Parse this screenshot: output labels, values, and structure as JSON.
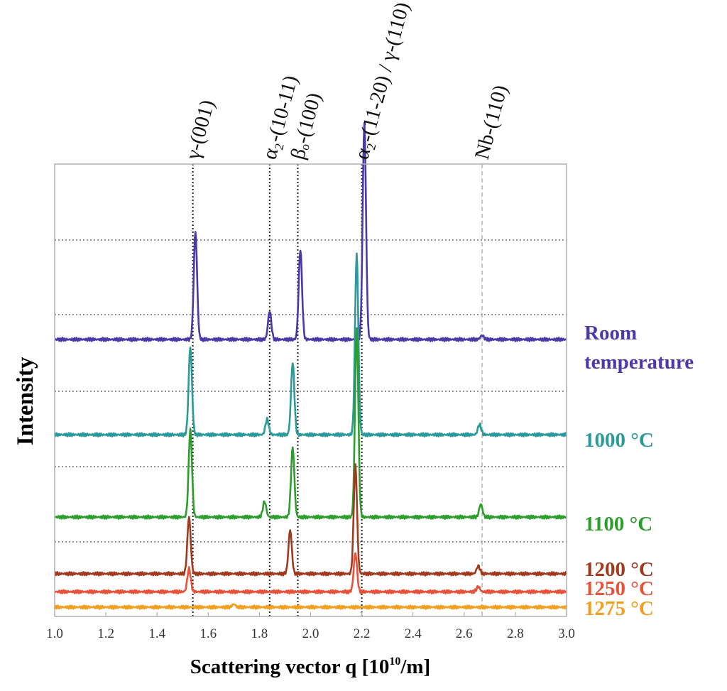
{
  "chart_data": {
    "type": "line",
    "xlabel": "Scattering vector q [10",
    "xlabel_sup": "10",
    "xlabel_suffix": "/m]",
    "ylabel": "Intensity",
    "xlim": [
      1.0,
      3.0
    ],
    "x_ticks": [
      "1.0",
      "1.2",
      "1.4",
      "1.6",
      "1.8",
      "2.0",
      "2.2",
      "2.4",
      "2.6",
      "2.8",
      "3.0"
    ],
    "grid": "horizontal dotted",
    "reference_lines": [
      {
        "label": "γ-(001)",
        "q": 1.54,
        "color": "#222222",
        "style": "dotted"
      },
      {
        "label": "α₂-(10-11)",
        "q": 1.84,
        "color": "#222222",
        "style": "dotted"
      },
      {
        "label": "βₒ-(100)",
        "q": 1.95,
        "color": "#222222",
        "style": "dotted"
      },
      {
        "label": "α₂-(11-20) / γ-(110)",
        "q": 2.2,
        "color": "#222222",
        "style": "dotted"
      },
      {
        "label": "Nb-(110)",
        "q": 2.67,
        "color": "#a8a8a8",
        "style": "dashed"
      }
    ],
    "series": [
      {
        "name": "Room temperature",
        "label_lines": [
          "Room",
          "temperature"
        ],
        "color": "#4a3aa8",
        "baseline": 5.2,
        "peaks": [
          {
            "q": 1.55,
            "h": 2.1
          },
          {
            "q": 1.84,
            "h": 0.55
          },
          {
            "q": 1.96,
            "h": 1.75
          },
          {
            "q": 2.21,
            "h": 4.2
          },
          {
            "q": 2.67,
            "h": 0.08
          }
        ]
      },
      {
        "name": "1000 °C",
        "label_lines": [
          "1000 °C"
        ],
        "color": "#2a9a9a",
        "baseline": 3.35,
        "peaks": [
          {
            "q": 1.53,
            "h": 1.7
          },
          {
            "q": 1.83,
            "h": 0.3
          },
          {
            "q": 1.93,
            "h": 1.4
          },
          {
            "q": 2.18,
            "h": 3.5
          },
          {
            "q": 2.66,
            "h": 0.2
          }
        ]
      },
      {
        "name": "1100 °C",
        "label_lines": [
          "1100 °C"
        ],
        "color": "#2d9e2d",
        "baseline": 1.75,
        "peaks": [
          {
            "q": 1.53,
            "h": 1.7
          },
          {
            "q": 1.82,
            "h": 0.3
          },
          {
            "q": 1.93,
            "h": 1.35
          },
          {
            "q": 2.18,
            "h": 3.65
          },
          {
            "q": 2.665,
            "h": 0.25
          }
        ]
      },
      {
        "name": "1200 °C",
        "label_lines": [
          "1200 °C"
        ],
        "color": "#a03a1e",
        "baseline": 0.65,
        "peaks": [
          {
            "q": 1.525,
            "h": 1.1
          },
          {
            "q": 1.92,
            "h": 0.85
          },
          {
            "q": 2.175,
            "h": 2.1
          },
          {
            "q": 2.655,
            "h": 0.15
          }
        ]
      },
      {
        "name": "1250 °C",
        "label_lines": [
          "1250 °C"
        ],
        "color": "#e8523a",
        "baseline": 0.3,
        "peaks": [
          {
            "q": 1.525,
            "h": 0.45
          },
          {
            "q": 2.175,
            "h": 0.75
          },
          {
            "q": 2.655,
            "h": 0.1
          }
        ]
      },
      {
        "name": "1275 °C",
        "label_lines": [
          "1275 °C"
        ],
        "color": "#f0a020",
        "baseline": 0.0,
        "peaks": [
          {
            "q": 1.7,
            "h": 0.06
          }
        ]
      }
    ]
  }
}
